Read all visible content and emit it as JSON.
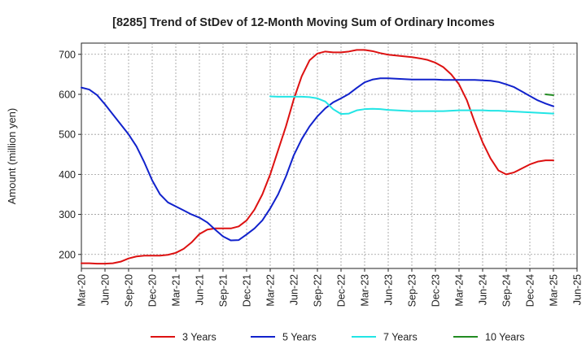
{
  "chart_data": {
    "type": "line",
    "title": "[8285]  Trend of StDev of 12-Month Moving Sum of Ordinary Incomes",
    "xlabel": "",
    "ylabel": "Amount (million yen)",
    "ylim": [
      165,
      728
    ],
    "yticks": [
      200,
      300,
      400,
      500,
      600,
      700
    ],
    "xlim": [
      "2020-03",
      "2025-06"
    ],
    "xticks": [
      "Mar-20",
      "Jun-20",
      "Sep-20",
      "Dec-20",
      "Mar-21",
      "Jun-21",
      "Sep-21",
      "Dec-21",
      "Mar-22",
      "Jun-22",
      "Sep-22",
      "Dec-22",
      "Mar-23",
      "Jun-23",
      "Sep-23",
      "Dec-23",
      "Mar-24",
      "Jun-24",
      "Sep-24",
      "Dec-24",
      "Mar-25",
      "Jun-25"
    ],
    "grid": true,
    "legend_position": "bottom",
    "series": [
      {
        "name": "3 Years",
        "color": "#dd1111",
        "x": [
          "2020-03",
          "2020-04",
          "2020-05",
          "2020-06",
          "2020-07",
          "2020-08",
          "2020-09",
          "2020-10",
          "2020-11",
          "2020-12",
          "2021-01",
          "2021-02",
          "2021-03",
          "2021-04",
          "2021-05",
          "2021-06",
          "2021-07",
          "2021-08",
          "2021-09",
          "2021-10",
          "2021-11",
          "2021-12",
          "2022-01",
          "2022-02",
          "2022-03",
          "2022-04",
          "2022-05",
          "2022-06",
          "2022-07",
          "2022-08",
          "2022-09",
          "2022-10",
          "2022-11",
          "2022-12",
          "2023-01",
          "2023-02",
          "2023-03",
          "2023-04",
          "2023-05",
          "2023-06",
          "2023-07",
          "2023-08",
          "2023-09",
          "2023-10",
          "2023-11",
          "2023-12",
          "2024-01",
          "2024-02",
          "2024-03",
          "2024-04",
          "2024-05",
          "2024-06",
          "2024-07",
          "2024-08",
          "2024-09",
          "2024-10",
          "2024-11",
          "2024-12",
          "2025-01",
          "2025-02",
          "2025-03"
        ],
        "values": [
          178,
          178,
          177,
          177,
          178,
          182,
          190,
          195,
          197,
          197,
          197,
          199,
          204,
          214,
          230,
          251,
          262,
          265,
          265,
          265,
          270,
          285,
          312,
          350,
          400,
          460,
          520,
          588,
          645,
          685,
          702,
          707,
          705,
          705,
          707,
          711,
          711,
          708,
          703,
          699,
          697,
          695,
          693,
          690,
          686,
          679,
          668,
          650,
          625,
          585,
          530,
          480,
          440,
          410,
          400,
          405,
          415,
          425,
          432,
          435,
          435
        ],
        "labels": []
      },
      {
        "name": "5 Years",
        "color": "#1122cc",
        "x": [
          "2020-03",
          "2020-04",
          "2020-05",
          "2020-06",
          "2020-07",
          "2020-08",
          "2020-09",
          "2020-10",
          "2020-11",
          "2020-12",
          "2021-01",
          "2021-02",
          "2021-03",
          "2021-04",
          "2021-05",
          "2021-06",
          "2021-07",
          "2021-08",
          "2021-09",
          "2021-10",
          "2021-11",
          "2021-12",
          "2022-01",
          "2022-02",
          "2022-03",
          "2022-04",
          "2022-05",
          "2022-06",
          "2022-07",
          "2022-08",
          "2022-09",
          "2022-10",
          "2022-11",
          "2022-12",
          "2023-01",
          "2023-02",
          "2023-03",
          "2023-04",
          "2023-05",
          "2023-06",
          "2023-07",
          "2023-08",
          "2023-09",
          "2023-10",
          "2023-11",
          "2023-12",
          "2024-01",
          "2024-02",
          "2024-03",
          "2024-04",
          "2024-05",
          "2024-06",
          "2024-07",
          "2024-08",
          "2024-09",
          "2024-10",
          "2024-11",
          "2024-12",
          "2025-01",
          "2025-02",
          "2025-03"
        ],
        "values": [
          617,
          612,
          598,
          575,
          550,
          525,
          500,
          470,
          430,
          385,
          350,
          330,
          320,
          310,
          300,
          292,
          280,
          262,
          245,
          235,
          236,
          250,
          265,
          285,
          315,
          350,
          395,
          448,
          488,
          520,
          545,
          565,
          580,
          590,
          601,
          616,
          630,
          637,
          640,
          640,
          639,
          638,
          637,
          637,
          637,
          637,
          636,
          636,
          636,
          636,
          636,
          635,
          634,
          631,
          625,
          618,
          607,
          596,
          585,
          577,
          570
        ],
        "labels": []
      },
      {
        "name": "7 Years",
        "color": "#22e5e5",
        "x": [
          "2022-03",
          "2022-04",
          "2022-05",
          "2022-06",
          "2022-07",
          "2022-08",
          "2022-09",
          "2022-10",
          "2022-11",
          "2022-12",
          "2023-01",
          "2023-02",
          "2023-03",
          "2023-04",
          "2023-05",
          "2023-06",
          "2023-07",
          "2023-08",
          "2023-09",
          "2023-10",
          "2023-11",
          "2023-12",
          "2024-01",
          "2024-02",
          "2024-03",
          "2024-04",
          "2024-05",
          "2024-06",
          "2024-07",
          "2024-08",
          "2024-09",
          "2024-10",
          "2024-11",
          "2024-12",
          "2025-01",
          "2025-02",
          "2025-03"
        ],
        "values": [
          595,
          594,
          594,
          594,
          594,
          593,
          590,
          582,
          563,
          551,
          552,
          560,
          563,
          564,
          563,
          561,
          560,
          559,
          558,
          558,
          558,
          558,
          558,
          559,
          560,
          560,
          560,
          560,
          559,
          559,
          558,
          557,
          556,
          555,
          554,
          553,
          552
        ],
        "labels": []
      },
      {
        "name": "10 Years",
        "color": "#228b22",
        "x": [
          "2025-02",
          "2025-03"
        ],
        "values": [
          600,
          598
        ],
        "labels": []
      }
    ]
  }
}
